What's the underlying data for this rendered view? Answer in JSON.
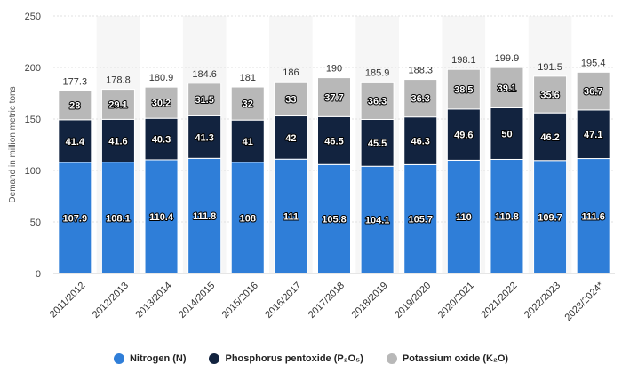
{
  "chart_data": {
    "type": "bar",
    "stacked": true,
    "ylabel": "Demand in million metric tons",
    "ylim": [
      0,
      250
    ],
    "yticks": [
      "0",
      "50",
      "100",
      "150",
      "200",
      "250"
    ],
    "grid": true,
    "legend_position": "bottom",
    "categories": [
      "2011/2012",
      "2012/2013",
      "2013/2014",
      "2014/2015",
      "2015/2016",
      "2016/2017",
      "2017/2018",
      "2018/2019",
      "2019/2020",
      "2020/2021",
      "2021/2022",
      "2022/2023",
      "2023/2024*"
    ],
    "series": [
      {
        "name": "Nitrogen (N)",
        "color": "#2f7ed8",
        "values": [
          107.9,
          108.1,
          110.4,
          111.8,
          108,
          111,
          105.8,
          104.1,
          105.7,
          110,
          110.8,
          109.7,
          111.6
        ],
        "labels": [
          "107.9",
          "108.1",
          "110.4",
          "111.8",
          "108",
          "111",
          "105.8",
          "104.1",
          "105.7",
          "110",
          "110.8",
          "109.7",
          "111.6"
        ]
      },
      {
        "name": "Phosphorus pentoxide (P₂O₅)",
        "color": "#12233f",
        "values": [
          41.4,
          41.6,
          40.3,
          41.3,
          41,
          42,
          46.5,
          45.5,
          46.3,
          49.6,
          50,
          46.2,
          47.1
        ],
        "labels": [
          "41.4",
          "41.6",
          "40.3",
          "41.3",
          "41",
          "42",
          "46.5",
          "45.5",
          "46.3",
          "49.6",
          "50",
          "46.2",
          "47.1"
        ]
      },
      {
        "name": "Potassium oxide (K₂O)",
        "color": "#b8b8b8",
        "values": [
          28,
          29.1,
          30.2,
          31.5,
          32,
          33,
          37.7,
          36.3,
          36.3,
          38.5,
          39.1,
          35.6,
          36.7
        ],
        "labels": [
          "28",
          "29.1",
          "30.2",
          "31.5",
          "32",
          "33",
          "37.7",
          "36.3",
          "36.3",
          "38.5",
          "39.1",
          "35.6",
          "36.7"
        ]
      }
    ],
    "totals": [
      "177.3",
      "178.8",
      "180.9",
      "184.6",
      "181",
      "186",
      "190",
      "185.9",
      "188.3",
      "198.1",
      "199.9",
      "191.5",
      "195.4"
    ],
    "band_color": "#f6f6f6",
    "grid_color": "#e2e2e2"
  }
}
